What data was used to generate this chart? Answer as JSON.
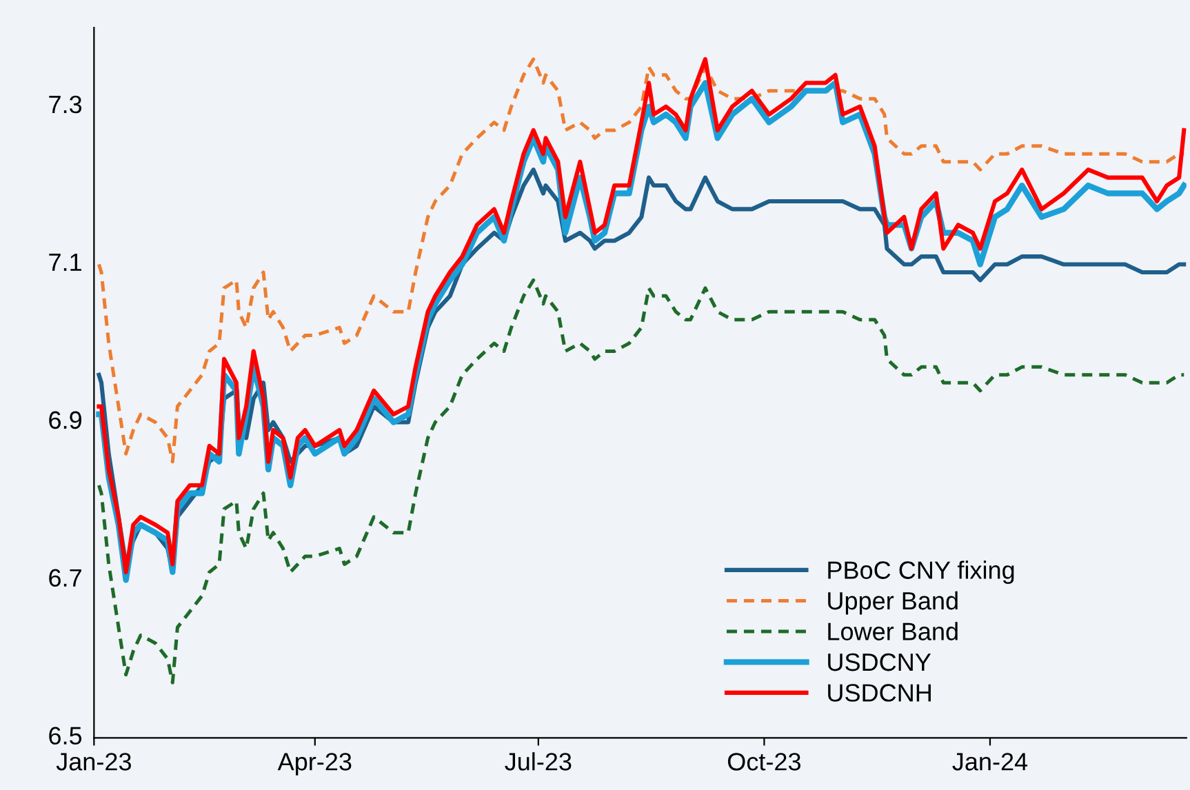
{
  "chart_data": {
    "type": "line",
    "x": [
      "2023-01-03",
      "2023-01-04",
      "2023-01-07",
      "2023-01-11",
      "2023-01-14",
      "2023-01-17",
      "2023-01-20",
      "2023-01-26",
      "2023-01-31",
      "2023-02-02",
      "2023-02-04",
      "2023-02-09",
      "2023-02-14",
      "2023-02-17",
      "2023-02-21",
      "2023-02-23",
      "2023-02-28",
      "2023-03-01",
      "2023-03-04",
      "2023-03-07",
      "2023-03-11",
      "2023-03-13",
      "2023-03-15",
      "2023-03-19",
      "2023-03-22",
      "2023-03-25",
      "2023-03-28",
      "2023-04-01",
      "2023-04-11",
      "2023-04-13",
      "2023-04-18",
      "2023-04-25",
      "2023-05-03",
      "2023-05-09",
      "2023-05-12",
      "2023-05-17",
      "2023-05-20",
      "2023-05-26",
      "2023-05-31",
      "2023-06-06",
      "2023-06-13",
      "2023-06-17",
      "2023-06-20",
      "2023-06-25",
      "2023-06-29",
      "2023-07-03",
      "2023-07-04",
      "2023-07-09",
      "2023-07-12",
      "2023-07-18",
      "2023-07-22",
      "2023-07-24",
      "2023-07-28",
      "2023-08-01",
      "2023-08-07",
      "2023-08-12",
      "2023-08-15",
      "2023-08-17",
      "2023-08-22",
      "2023-08-26",
      "2023-08-30",
      "2023-09-01",
      "2023-09-07",
      "2023-09-12",
      "2023-09-18",
      "2023-09-26",
      "2023-10-03",
      "2023-10-12",
      "2023-10-18",
      "2023-10-26",
      "2023-10-30",
      "2023-11-02",
      "2023-11-09",
      "2023-11-15",
      "2023-11-19",
      "2023-11-20",
      "2023-11-27",
      "2023-11-30",
      "2023-12-04",
      "2023-12-10",
      "2023-12-13",
      "2023-12-19",
      "2023-12-25",
      "2023-12-28",
      "2024-01-03",
      "2024-01-08",
      "2024-01-14",
      "2024-01-22",
      "2024-01-31",
      "2024-02-10",
      "2024-02-18",
      "2024-02-25",
      "2024-03-03",
      "2024-03-09",
      "2024-03-13",
      "2024-03-18",
      "2024-03-20"
    ],
    "series": [
      {
        "name": "PBoC CNY fixing",
        "color": "#1f5f8b",
        "line_style": "solid",
        "values": [
          6.96,
          6.95,
          6.86,
          6.78,
          6.72,
          6.75,
          6.77,
          6.76,
          6.74,
          6.71,
          6.78,
          6.8,
          6.82,
          6.85,
          6.86,
          6.93,
          6.94,
          6.9,
          6.88,
          6.93,
          6.95,
          6.89,
          6.9,
          6.88,
          6.85,
          6.86,
          6.87,
          6.87,
          6.88,
          6.86,
          6.87,
          6.92,
          6.9,
          6.9,
          6.95,
          7.02,
          7.04,
          7.06,
          7.1,
          7.12,
          7.14,
          7.13,
          7.16,
          7.2,
          7.22,
          7.19,
          7.2,
          7.18,
          7.13,
          7.14,
          7.13,
          7.12,
          7.13,
          7.13,
          7.14,
          7.16,
          7.21,
          7.2,
          7.2,
          7.18,
          7.17,
          7.17,
          7.21,
          7.18,
          7.17,
          7.17,
          7.18,
          7.18,
          7.18,
          7.18,
          7.18,
          7.18,
          7.17,
          7.17,
          7.15,
          7.12,
          7.1,
          7.1,
          7.11,
          7.11,
          7.09,
          7.09,
          7.09,
          7.08,
          7.1,
          7.1,
          7.11,
          7.11,
          7.1,
          7.1,
          7.1,
          7.1,
          7.09,
          7.09,
          7.09,
          7.1,
          7.1
        ]
      },
      {
        "name": "Upper Band",
        "color": "#ed7d31",
        "line_style": "dashed",
        "values": [
          7.1,
          7.09,
          7.0,
          6.92,
          6.86,
          6.89,
          6.91,
          6.9,
          6.88,
          6.85,
          6.92,
          6.94,
          6.96,
          6.99,
          7.0,
          7.07,
          7.08,
          7.04,
          7.02,
          7.07,
          7.09,
          7.03,
          7.04,
          7.02,
          6.99,
          7.0,
          7.01,
          7.01,
          7.02,
          7.0,
          7.01,
          7.06,
          7.04,
          7.04,
          7.09,
          7.16,
          7.18,
          7.2,
          7.24,
          7.26,
          7.28,
          7.27,
          7.3,
          7.34,
          7.36,
          7.33,
          7.34,
          7.32,
          7.27,
          7.28,
          7.27,
          7.26,
          7.27,
          7.27,
          7.28,
          7.3,
          7.35,
          7.34,
          7.34,
          7.32,
          7.31,
          7.31,
          7.35,
          7.32,
          7.31,
          7.31,
          7.32,
          7.32,
          7.32,
          7.32,
          7.32,
          7.32,
          7.31,
          7.31,
          7.29,
          7.26,
          7.24,
          7.24,
          7.25,
          7.25,
          7.23,
          7.23,
          7.23,
          7.22,
          7.24,
          7.24,
          7.25,
          7.25,
          7.24,
          7.24,
          7.24,
          7.24,
          7.23,
          7.23,
          7.23,
          7.24,
          7.24
        ]
      },
      {
        "name": "Lower Band",
        "color": "#1e6b2a",
        "line_style": "dashed",
        "values": [
          6.82,
          6.81,
          6.72,
          6.64,
          6.58,
          6.61,
          6.63,
          6.62,
          6.6,
          6.57,
          6.64,
          6.66,
          6.68,
          6.71,
          6.72,
          6.79,
          6.8,
          6.76,
          6.74,
          6.79,
          6.81,
          6.75,
          6.76,
          6.74,
          6.71,
          6.72,
          6.73,
          6.73,
          6.74,
          6.72,
          6.73,
          6.78,
          6.76,
          6.76,
          6.81,
          6.88,
          6.9,
          6.92,
          6.96,
          6.98,
          7.0,
          6.99,
          7.02,
          7.06,
          7.08,
          7.05,
          7.06,
          7.04,
          6.99,
          7.0,
          6.99,
          6.98,
          6.99,
          6.99,
          7.0,
          7.02,
          7.07,
          7.06,
          7.06,
          7.04,
          7.03,
          7.03,
          7.07,
          7.04,
          7.03,
          7.03,
          7.04,
          7.04,
          7.04,
          7.04,
          7.04,
          7.04,
          7.03,
          7.03,
          7.01,
          6.98,
          6.96,
          6.96,
          6.97,
          6.97,
          6.95,
          6.95,
          6.95,
          6.94,
          6.96,
          6.96,
          6.97,
          6.97,
          6.96,
          6.96,
          6.96,
          6.96,
          6.95,
          6.95,
          6.95,
          6.96,
          6.96
        ]
      },
      {
        "name": "USDCNY",
        "color": "#1ca0d8",
        "line_style": "solid",
        "values": [
          6.91,
          6.91,
          6.83,
          6.77,
          6.7,
          6.76,
          6.77,
          6.76,
          6.75,
          6.71,
          6.79,
          6.81,
          6.81,
          6.86,
          6.85,
          6.96,
          6.94,
          6.86,
          6.91,
          6.97,
          6.92,
          6.84,
          6.88,
          6.87,
          6.82,
          6.87,
          6.88,
          6.86,
          6.88,
          6.86,
          6.88,
          6.93,
          6.9,
          6.91,
          6.96,
          7.03,
          7.05,
          7.08,
          7.1,
          7.14,
          7.16,
          7.13,
          7.17,
          7.23,
          7.26,
          7.23,
          7.25,
          7.22,
          7.14,
          7.21,
          7.16,
          7.13,
          7.14,
          7.19,
          7.19,
          7.27,
          7.3,
          7.28,
          7.29,
          7.28,
          7.26,
          7.3,
          7.33,
          7.26,
          7.29,
          7.31,
          7.28,
          7.3,
          7.32,
          7.32,
          7.33,
          7.28,
          7.29,
          7.24,
          7.16,
          7.15,
          7.15,
          7.12,
          7.16,
          7.18,
          7.14,
          7.14,
          7.13,
          7.1,
          7.16,
          7.17,
          7.2,
          7.16,
          7.17,
          7.2,
          7.19,
          7.19,
          7.19,
          7.17,
          7.18,
          7.19,
          7.2
        ]
      },
      {
        "name": "USDCNH",
        "color": "#ff0000",
        "line_style": "solid",
        "values": [
          6.92,
          6.92,
          6.84,
          6.78,
          6.71,
          6.77,
          6.78,
          6.77,
          6.76,
          6.72,
          6.8,
          6.82,
          6.82,
          6.87,
          6.86,
          6.98,
          6.95,
          6.88,
          6.92,
          6.99,
          6.93,
          6.85,
          6.89,
          6.88,
          6.83,
          6.88,
          6.89,
          6.87,
          6.89,
          6.87,
          6.89,
          6.94,
          6.91,
          6.92,
          6.97,
          7.04,
          7.06,
          7.09,
          7.11,
          7.15,
          7.17,
          7.14,
          7.18,
          7.24,
          7.27,
          7.24,
          7.26,
          7.23,
          7.16,
          7.23,
          7.17,
          7.14,
          7.15,
          7.2,
          7.2,
          7.28,
          7.33,
          7.29,
          7.3,
          7.29,
          7.27,
          7.31,
          7.36,
          7.27,
          7.3,
          7.32,
          7.29,
          7.31,
          7.33,
          7.33,
          7.34,
          7.29,
          7.3,
          7.25,
          7.16,
          7.14,
          7.16,
          7.12,
          7.17,
          7.19,
          7.12,
          7.15,
          7.14,
          7.12,
          7.18,
          7.19,
          7.22,
          7.17,
          7.19,
          7.22,
          7.21,
          7.21,
          7.21,
          7.18,
          7.2,
          7.21,
          7.27
        ]
      }
    ],
    "xlim": [
      "2023-01-01",
      "2024-03-21"
    ],
    "xticks": [
      {
        "value": "2023-01-01",
        "label": "Jan-23"
      },
      {
        "value": "2023-04-01",
        "label": "Apr-23"
      },
      {
        "value": "2023-07-01",
        "label": "Jul-23"
      },
      {
        "value": "2023-10-01",
        "label": "Oct-23"
      },
      {
        "value": "2024-01-01",
        "label": "Jan-24"
      }
    ],
    "ylim": [
      6.5,
      7.4
    ],
    "yticks": [
      {
        "value": 6.5,
        "label": "6.5"
      },
      {
        "value": 6.7,
        "label": "6.7"
      },
      {
        "value": 6.9,
        "label": "6.9"
      },
      {
        "value": 7.1,
        "label": "7.1"
      },
      {
        "value": 7.3,
        "label": "7.3"
      }
    ],
    "grid": false,
    "legend": "bottom right"
  }
}
